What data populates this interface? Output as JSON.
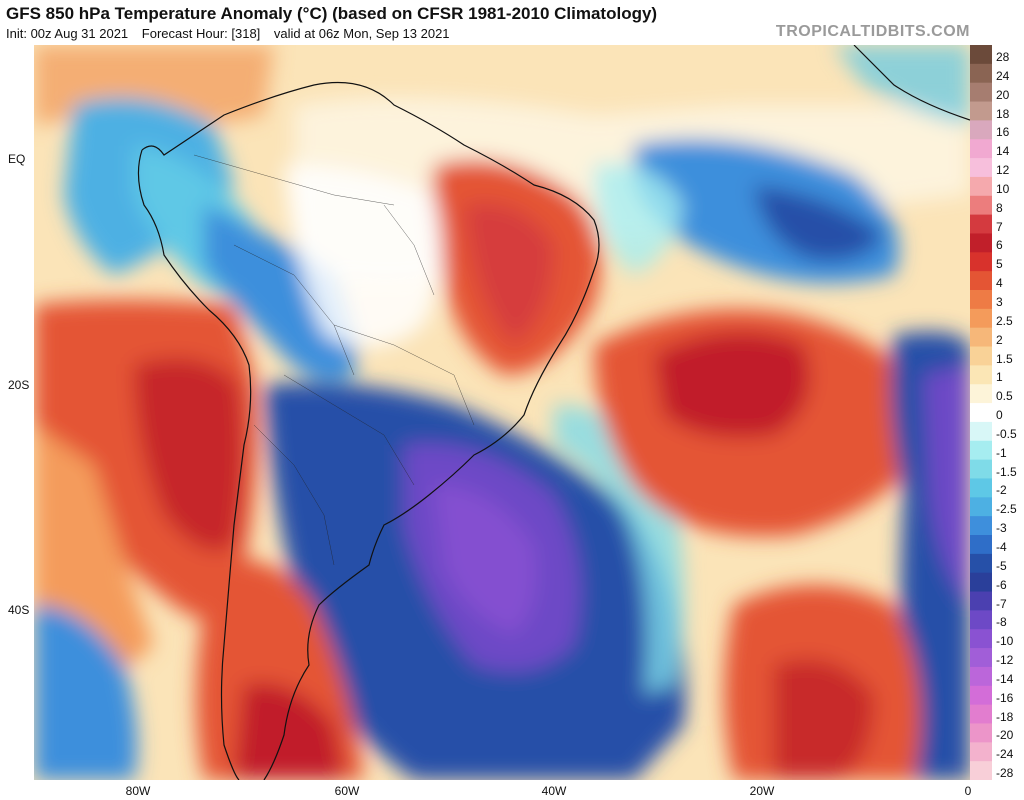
{
  "header": {
    "title": "GFS 850 hPa Temperature Anomaly (°C) (based on CFSR 1981-2010 Climatology)",
    "init": "Init: 00z Aug 31 2021",
    "forecast_hour": "Forecast Hour: [318]",
    "valid": "valid at 06z Mon, Sep 13 2021",
    "brand": "TROPICALTIDBITS.COM"
  },
  "axes": {
    "lat_labels": [
      "EQ",
      "20S",
      "40S"
    ],
    "lon_labels": [
      "80W",
      "60W",
      "40W",
      "20W",
      "0"
    ]
  },
  "legend": {
    "unit": "°C",
    "labels": [
      "28",
      "24",
      "20",
      "18",
      "16",
      "14",
      "12",
      "10",
      "8",
      "7",
      "6",
      "5",
      "4",
      "3",
      "2.5",
      "2",
      "1.5",
      "1",
      "0.5",
      "0",
      "-0.5",
      "-1",
      "-1.5",
      "-2",
      "-2.5",
      "-3",
      "-4",
      "-5",
      "-6",
      "-7",
      "-8",
      "-10",
      "-12",
      "-14",
      "-16",
      "-18",
      "-20",
      "-24",
      "-28"
    ],
    "colors": [
      "#6b4a3a",
      "#8a6453",
      "#a67d70",
      "#c29a8e",
      "#d9a8bd",
      "#f1a9d1",
      "#f7bfdc",
      "#f5a9ad",
      "#ec7d7d",
      "#d43a3f",
      "#c11f2a",
      "#d8322c",
      "#e45534",
      "#ee7b45",
      "#f49b5b",
      "#f6b779",
      "#f9d297",
      "#fbe6b5",
      "#fdf4d9",
      "#ffffff",
      "#d8f7f7",
      "#a6edf0",
      "#7fdbe8",
      "#5ec8e6",
      "#4db0e3",
      "#3e8fdc",
      "#2f6ec8",
      "#2650a8",
      "#2a3f9a",
      "#4b40b0",
      "#6d49c6",
      "#8a52d2",
      "#a15ed8",
      "#bb66da",
      "#d36dd8",
      "#e27dcf",
      "#ec95c9",
      "#f3b2cd",
      "#f8cfd8"
    ]
  },
  "map_features": {
    "regions": [
      "south-america",
      "west-africa"
    ],
    "anomaly_areas": [
      {
        "name": "south-atlantic-cold-anomaly",
        "value": -10
      },
      {
        "name": "south-atlantic-warm-anomaly",
        "value": 6
      },
      {
        "name": "brazil-warm-anomaly",
        "value": 5
      },
      {
        "name": "chile-warm-anomaly",
        "value": 5
      },
      {
        "name": "patagonia-warm-anomaly",
        "value": 5
      },
      {
        "name": "equatorial-atlantic-cold-anomaly",
        "value": -4
      },
      {
        "name": "southeast-atlantic-warm-anomaly",
        "value": 5
      }
    ]
  }
}
